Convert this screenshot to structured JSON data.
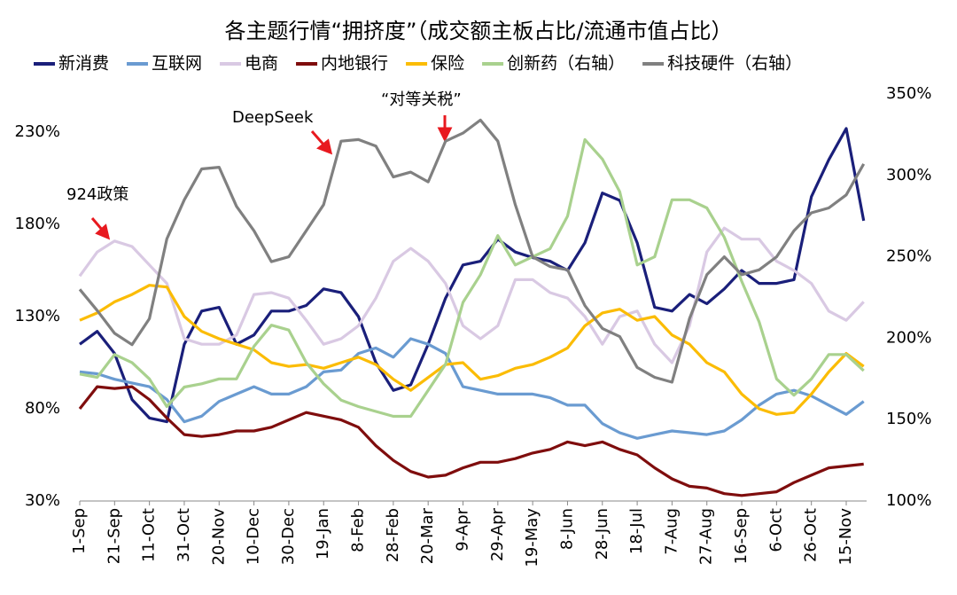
{
  "chart_data": {
    "type": "line",
    "title": "各主题行情“拥挤度”（成交额主板占比/流通市值占比）",
    "annotations": [
      {
        "text": "924政策"
      },
      {
        "text": "DeepSeek"
      },
      {
        "text": "“对等关税”"
      }
    ],
    "categories": [
      "1-Sep",
      null,
      "21-Sep",
      null,
      "11-Oct",
      null,
      "31-Oct",
      null,
      "20-Nov",
      null,
      "10-Dec",
      null,
      "30-Dec",
      null,
      "19-Jan",
      null,
      "8-Feb",
      null,
      "28-Feb",
      null,
      "20-Mar",
      null,
      "9-Apr",
      null,
      "29-Apr",
      null,
      "19-May",
      null,
      "8-Jun",
      null,
      "28-Jun",
      null,
      "18-Jul",
      null,
      "7-Aug",
      null,
      "27-Aug",
      null,
      "16-Sep",
      null,
      "6-Oct",
      null,
      "26-Oct",
      null,
      "15-Nov",
      null
    ],
    "ylim": [
      30,
      250.7
    ],
    "yticks": [
      {
        "value": 30,
        "label": "30%"
      },
      {
        "value": 80,
        "label": "80%"
      },
      {
        "value": 130,
        "label": "130%"
      },
      {
        "value": 180,
        "label": "180%"
      },
      {
        "value": 230,
        "label": "230%"
      }
    ],
    "y2lim": [
      100,
      350
    ],
    "y2ticks": [
      {
        "value": 100,
        "label": "100%"
      },
      {
        "value": 150,
        "label": "150%"
      },
      {
        "value": 200,
        "label": "200%"
      },
      {
        "value": 250,
        "label": "250%"
      },
      {
        "value": 300,
        "label": "300%"
      },
      {
        "value": 350,
        "label": "350%"
      }
    ],
    "series": [
      {
        "name": "新消费",
        "color": "#1a1f7a",
        "values": [
          115,
          122,
          110,
          85,
          75,
          73,
          115,
          133,
          135,
          115,
          120,
          133,
          133,
          136,
          145,
          143,
          130,
          105,
          90,
          93,
          115,
          140,
          158,
          160,
          172,
          165,
          162,
          160,
          155,
          170,
          197,
          193,
          170,
          135,
          133,
          142,
          137,
          145,
          155,
          148,
          148,
          150,
          195,
          215,
          232,
          182
        ]
      },
      {
        "name": "互联网",
        "color": "#6a9bd1",
        "values": [
          100,
          99,
          96,
          94,
          92,
          85,
          73,
          76,
          84,
          88,
          92,
          88,
          88,
          92,
          100,
          101,
          110,
          113,
          108,
          118,
          115,
          110,
          92,
          90,
          88,
          88,
          88,
          86,
          82,
          82,
          72,
          67,
          64,
          66,
          68,
          67,
          66,
          68,
          74,
          82,
          88,
          90,
          87,
          82,
          77,
          84
        ]
      },
      {
        "name": "电商",
        "color": "#d9c9e3",
        "values": [
          152,
          165,
          171,
          168,
          158,
          148,
          118,
          115,
          115,
          120,
          142,
          143,
          140,
          128,
          115,
          118,
          125,
          140,
          160,
          167,
          160,
          148,
          125,
          118,
          125,
          150,
          150,
          143,
          140,
          130,
          115,
          130,
          133,
          115,
          105,
          125,
          165,
          178,
          172,
          172,
          160,
          155,
          148,
          133,
          128,
          138
        ]
      },
      {
        "name": "内地银行",
        "color": "#7f0d0d",
        "values": [
          80,
          92,
          91,
          92,
          85,
          75,
          66,
          65,
          66,
          68,
          68,
          70,
          74,
          78,
          76,
          74,
          70,
          60,
          52,
          46,
          43,
          44,
          48,
          51,
          51,
          53,
          56,
          58,
          62,
          60,
          62,
          58,
          55,
          48,
          42,
          38,
          37,
          34,
          33,
          34,
          35,
          40,
          44,
          48,
          49,
          50
        ]
      },
      {
        "name": "保险",
        "color": "#fbbc05",
        "values": [
          128,
          132,
          138,
          142,
          147,
          146,
          130,
          122,
          118,
          115,
          112,
          105,
          103,
          104,
          102,
          105,
          108,
          104,
          96,
          90,
          97,
          104,
          105,
          96,
          98,
          102,
          104,
          108,
          113,
          125,
          132,
          134,
          128,
          130,
          120,
          115,
          105,
          100,
          88,
          80,
          77,
          78,
          88,
          100,
          110,
          103
        ]
      },
      {
        "name": "创新药（右轴）",
        "color": "#a9d18e",
        "axis": "y2",
        "values": [
          178,
          176,
          190,
          185,
          175,
          158,
          170,
          172,
          175,
          175,
          195,
          208,
          205,
          185,
          172,
          162,
          158,
          155,
          152,
          152,
          168,
          184,
          222,
          239,
          263,
          245,
          250,
          255,
          275,
          322,
          310,
          290,
          245,
          250,
          285,
          285,
          280,
          262,
          235,
          210,
          175,
          165,
          175,
          190,
          190,
          180
        ]
      },
      {
        "name": "科技硬件（右轴）",
        "color": "#808080",
        "axis": "y2",
        "values": [
          230,
          217,
          203,
          196,
          212,
          261,
          285,
          304,
          305,
          281,
          266,
          247,
          250,
          266,
          282,
          321,
          322,
          318,
          299,
          302,
          296,
          321,
          326,
          334,
          321,
          282,
          250,
          244,
          242,
          220,
          206,
          201,
          182,
          176,
          173,
          212,
          239,
          250,
          239,
          242,
          250,
          266,
          277,
          280,
          288,
          307
        ]
      }
    ]
  }
}
